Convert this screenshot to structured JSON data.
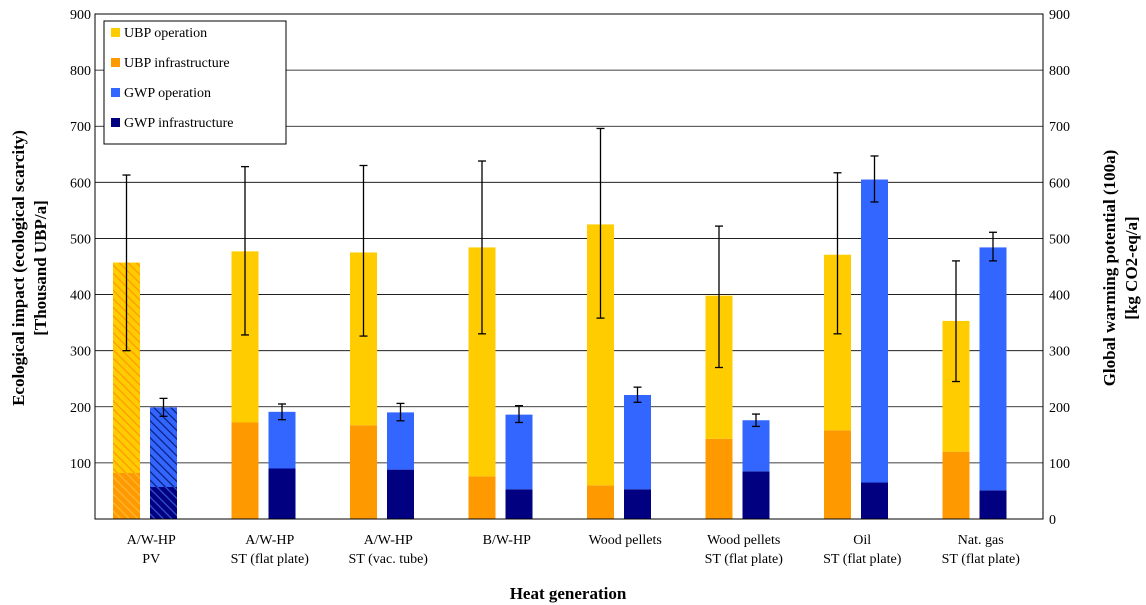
{
  "chart_data": {
    "type": "bar",
    "xlabel": "Heat generation",
    "ylabel_left": [
      "Ecological impact (ecological scarcity)",
      "[Thousand UBP/a]"
    ],
    "ylabel_right": [
      "Global warming potential (100a)",
      "[kg CO2-eq/a]"
    ],
    "ylim_left": [
      0,
      900
    ],
    "ylim_right": [
      0,
      900
    ],
    "yticks": [
      100,
      200,
      300,
      400,
      500,
      600,
      700,
      800,
      900
    ],
    "yticks_right": [
      0,
      100,
      200,
      300,
      400,
      500,
      600,
      700,
      800,
      900
    ],
    "grid": true,
    "legend_position": "top-left",
    "categories": [
      [
        "A/W-HP",
        "PV"
      ],
      [
        "A/W-HP",
        "ST (flat plate)"
      ],
      [
        "A/W-HP",
        "ST (vac. tube)"
      ],
      [
        "B/W-HP",
        ""
      ],
      [
        "Wood pellets",
        ""
      ],
      [
        "Wood pellets",
        "ST (flat plate)"
      ],
      [
        "Oil",
        "ST (flat plate)"
      ],
      [
        "Nat. gas",
        "ST (flat plate)"
      ]
    ],
    "series": [
      {
        "name": "UBP operation",
        "color": "#FFCC00",
        "values": [
          375,
          305,
          308,
          408,
          465,
          255,
          313,
          233
        ]
      },
      {
        "name": "UBP infrastructure",
        "color": "#FF9900",
        "values": [
          82,
          172,
          167,
          76,
          60,
          143,
          158,
          120
        ]
      },
      {
        "name": "GWP operation",
        "color": "#3366FF",
        "values": [
          142,
          101,
          102,
          133,
          168,
          91,
          540,
          433
        ]
      },
      {
        "name": "GWP infrastructure",
        "color": "#000080",
        "values": [
          57,
          90,
          88,
          53,
          53,
          85,
          65,
          51
        ]
      }
    ],
    "ubp_total": [
      457,
      477,
      475,
      484,
      525,
      398,
      471,
      353
    ],
    "ubp_error": [
      [
        300,
        613
      ],
      [
        328,
        628
      ],
      [
        326,
        630
      ],
      [
        330,
        638
      ],
      [
        358,
        696
      ],
      [
        270,
        522
      ],
      [
        330,
        617
      ],
      [
        245,
        460
      ]
    ],
    "gwp_total": [
      199,
      191,
      190,
      186,
      221,
      176,
      605,
      484
    ],
    "gwp_error": [
      [
        183,
        215
      ],
      [
        177,
        205
      ],
      [
        175,
        206
      ],
      [
        172,
        202
      ],
      [
        208,
        235
      ],
      [
        165,
        187
      ],
      [
        565,
        647
      ],
      [
        460,
        511
      ]
    ],
    "hatched_categories": [
      0
    ]
  }
}
